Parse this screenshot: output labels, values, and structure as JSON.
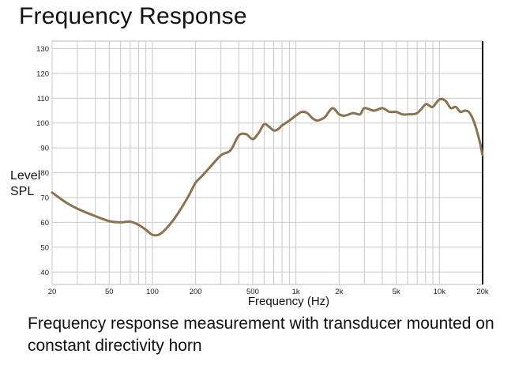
{
  "chart_data": {
    "type": "line",
    "title": "Frequency Response",
    "xlabel": "Frequency (Hz)",
    "ylabel": "Level SPL",
    "x_scale": "log",
    "xlim": [
      20,
      20000
    ],
    "ylim": [
      35,
      133
    ],
    "x_ticks": [
      20,
      50,
      100,
      200,
      500,
      1000,
      2000,
      5000,
      10000,
      20000
    ],
    "x_tick_labels": [
      "20",
      "50",
      "100",
      "200",
      "500",
      "1k",
      "2k",
      "5k",
      "10k",
      "20k"
    ],
    "y_ticks": [
      40,
      50,
      60,
      70,
      80,
      90,
      100,
      110,
      120,
      130
    ],
    "grid": true,
    "series": [
      {
        "color": "#8a7350",
        "x": [
          20,
          25,
          30,
          40,
          50,
          60,
          70,
          80,
          90,
          100,
          110,
          120,
          140,
          160,
          180,
          200,
          220,
          250,
          300,
          350,
          400,
          450,
          500,
          550,
          600,
          650,
          700,
          750,
          800,
          900,
          1000,
          1100,
          1200,
          1300,
          1400,
          1500,
          1600,
          1800,
          2000,
          2200,
          2500,
          2800,
          3000,
          3500,
          4000,
          4500,
          5000,
          5500,
          6000,
          7000,
          8000,
          8500,
          9000,
          10000,
          11000,
          12000,
          13000,
          14000,
          15000,
          16000,
          17000,
          18000,
          19000,
          20000
        ],
        "y": [
          72,
          68,
          65.5,
          62.5,
          60.5,
          60,
          60.3,
          59,
          57,
          55,
          55,
          56.5,
          61,
          66,
          71,
          76,
          78.5,
          82,
          87,
          89,
          95,
          95.5,
          93.5,
          96,
          99.5,
          98.5,
          97,
          97.5,
          99,
          101,
          103,
          104.5,
          104,
          102,
          101,
          101.5,
          102.5,
          106,
          103.5,
          103,
          104,
          103.5,
          106,
          105,
          106,
          104.5,
          104.5,
          103.5,
          103.5,
          104,
          107.5,
          107,
          106.5,
          109.5,
          109,
          106,
          106.5,
          104.5,
          105,
          104.5,
          102,
          98,
          93,
          87
        ]
      }
    ]
  },
  "caption": "Frequency response measurement with transducer mounted on constant directivity horn",
  "colors": {
    "grid": "#c8c8c8",
    "axis": "#000000",
    "frame": "#bbbbbb"
  }
}
